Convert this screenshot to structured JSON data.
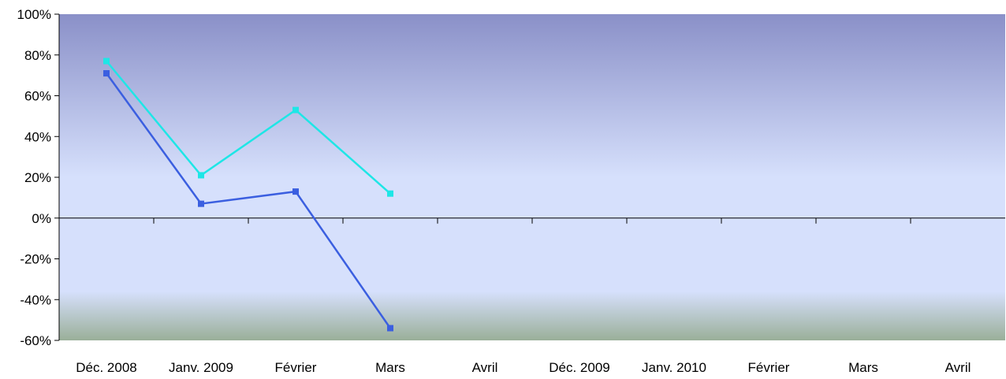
{
  "chart_data": {
    "type": "line",
    "title": "",
    "xlabel": "",
    "ylabel": "",
    "categories": [
      "Déc. 2008",
      "Janv. 2009",
      "Février",
      "Mars",
      "Avril",
      "Déc. 2009",
      "Janv. 2010",
      "Février",
      "Mars",
      "Avril"
    ],
    "y_ticks": [
      100,
      80,
      60,
      40,
      20,
      0,
      -20,
      -40,
      -60
    ],
    "y_tick_labels": [
      "100%",
      "80%",
      "60%",
      "40%",
      "20%",
      "0%",
      "-20%",
      "-40%",
      "-60%"
    ],
    "ylim": [
      -60,
      100
    ],
    "grid": false,
    "legend": "none",
    "series": [
      {
        "color": "#1ee6e6",
        "values": [
          77,
          21,
          53,
          12,
          null,
          null,
          null,
          null,
          null,
          null
        ]
      },
      {
        "color": "#3b5fe0",
        "values": [
          71,
          7,
          13,
          -54,
          null,
          null,
          null,
          null,
          null,
          null
        ]
      }
    ],
    "background": {
      "top": "#8a90c8",
      "middle": "#d6e0fc",
      "bottom": "#9aaf99"
    }
  }
}
